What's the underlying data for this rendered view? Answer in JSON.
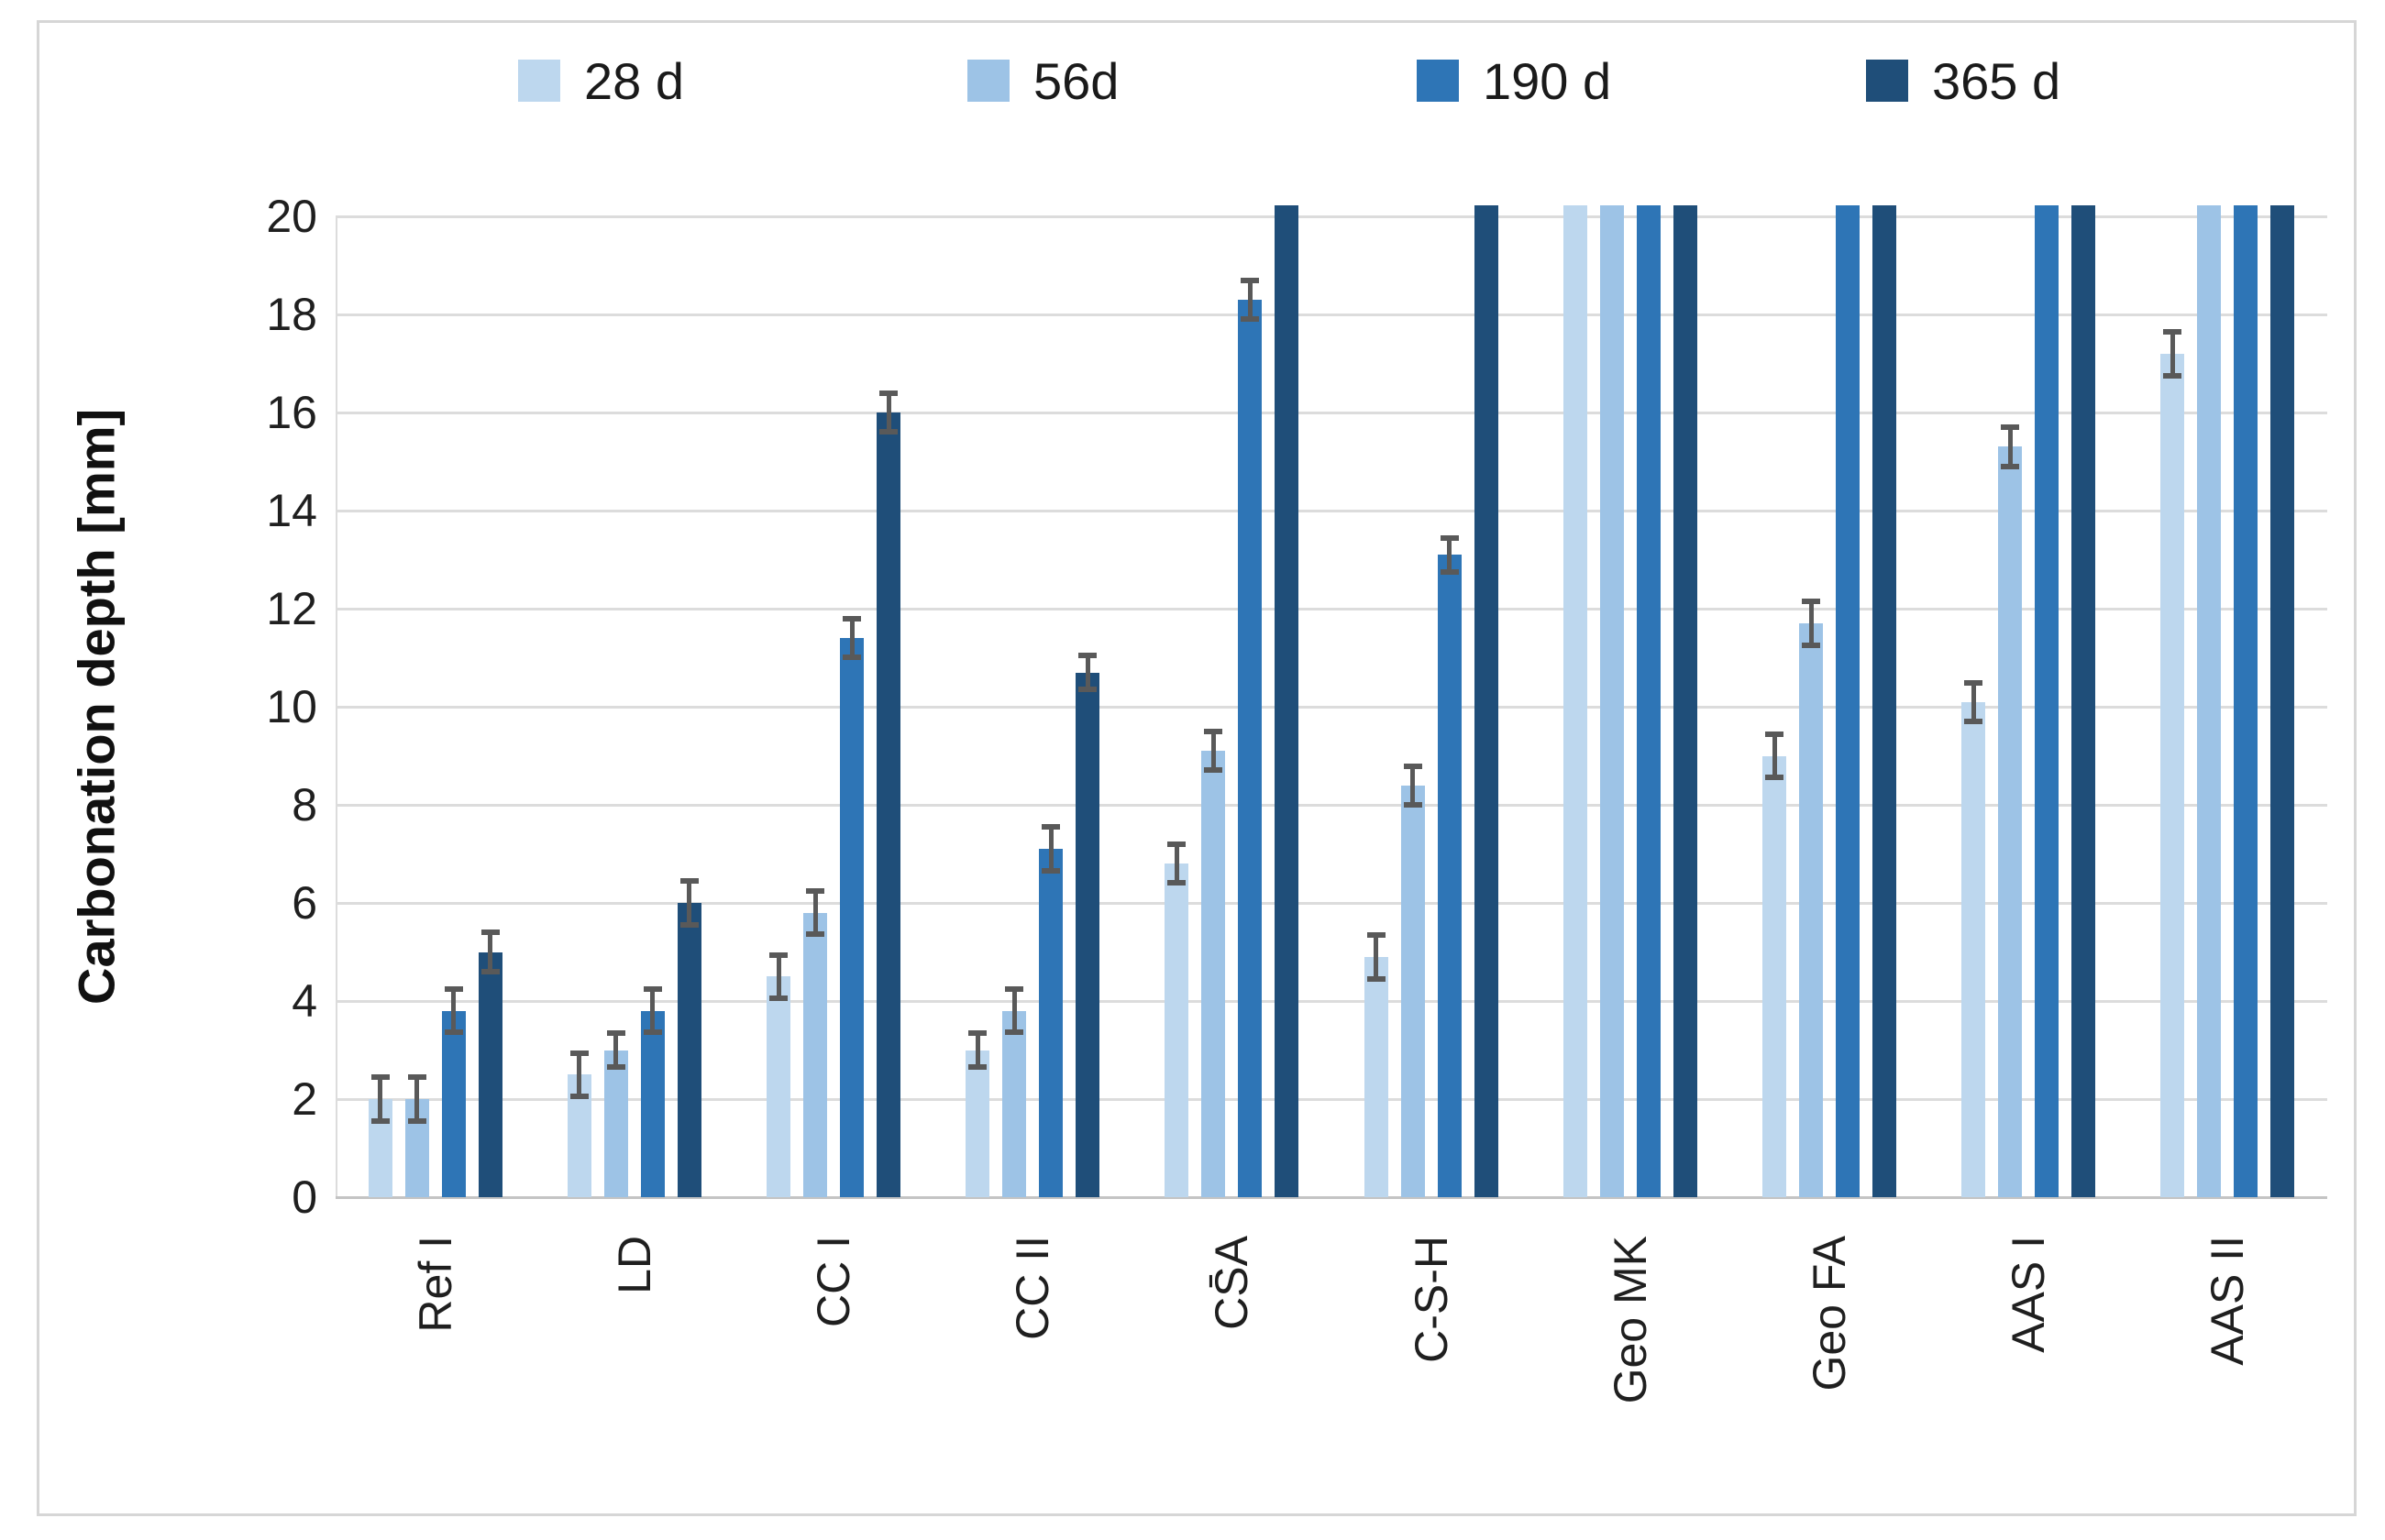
{
  "legend": {
    "items": [
      {
        "label": "28 d",
        "color": "#BDD7EE"
      },
      {
        "label": "56d",
        "color": "#9DC3E6"
      },
      {
        "label": "190 d",
        "color": "#2E75B6"
      },
      {
        "label": "365 d",
        "color": "#1F4E79"
      }
    ]
  },
  "chart_data": {
    "type": "bar",
    "title": "",
    "xlabel": "",
    "ylabel": "Carbonation depth [mm]",
    "ylim": [
      0,
      20
    ],
    "yticks": [
      0,
      2,
      4,
      6,
      8,
      10,
      12,
      14,
      16,
      18,
      20
    ],
    "grid": "horizontal",
    "legend_position": "top",
    "xtick_rotation_deg": 90,
    "axis_max_truncation": "bars reaching 20 are cut off at the axis maximum",
    "categories": [
      "Ref I",
      "LD",
      "CC I",
      "CC II",
      "CS̄A",
      "C-S-H",
      "Geo MK",
      "Geo FA",
      "AAS I",
      "AAS II"
    ],
    "series": [
      {
        "name": "28 d",
        "color": "#BDD7EE",
        "values": [
          2.0,
          2.5,
          4.5,
          3.0,
          6.8,
          4.9,
          20,
          9.0,
          10.1,
          17.2
        ],
        "errors": [
          0.5,
          0.5,
          0.5,
          0.4,
          0.45,
          0.5,
          null,
          0.5,
          0.45,
          0.5
        ],
        "clipped": [
          false,
          false,
          false,
          false,
          false,
          false,
          true,
          false,
          false,
          false
        ]
      },
      {
        "name": "56d",
        "color": "#9DC3E6",
        "values": [
          2.0,
          3.0,
          5.8,
          3.8,
          9.1,
          8.4,
          20,
          11.7,
          15.3,
          20
        ],
        "errors": [
          0.5,
          0.4,
          0.5,
          0.5,
          0.45,
          0.45,
          null,
          0.5,
          0.45,
          null
        ],
        "clipped": [
          false,
          false,
          false,
          false,
          false,
          false,
          true,
          false,
          false,
          true
        ]
      },
      {
        "name": "190 d",
        "color": "#2E75B6",
        "values": [
          3.8,
          3.8,
          11.4,
          7.1,
          18.3,
          13.1,
          20,
          20,
          20,
          20
        ],
        "errors": [
          0.5,
          0.5,
          0.45,
          0.5,
          0.45,
          0.4,
          null,
          null,
          null,
          null
        ],
        "clipped": [
          false,
          false,
          false,
          false,
          false,
          false,
          true,
          true,
          true,
          true
        ]
      },
      {
        "name": "365 d",
        "color": "#1F4E79",
        "values": [
          5.0,
          6.0,
          16.0,
          10.7,
          20,
          20,
          20,
          20,
          20,
          20
        ],
        "errors": [
          0.45,
          0.5,
          0.45,
          0.4,
          null,
          null,
          null,
          null,
          null,
          null
        ],
        "clipped": [
          false,
          false,
          false,
          false,
          true,
          true,
          true,
          true,
          true,
          true
        ]
      }
    ]
  },
  "style": {
    "grid_color": "#dcdcdc",
    "axis_color": "#c4c4c4",
    "error_bar_color": "#595959",
    "text_color": "#1f1f1f",
    "frame_color": "#d6d6d6",
    "background": "#ffffff"
  }
}
